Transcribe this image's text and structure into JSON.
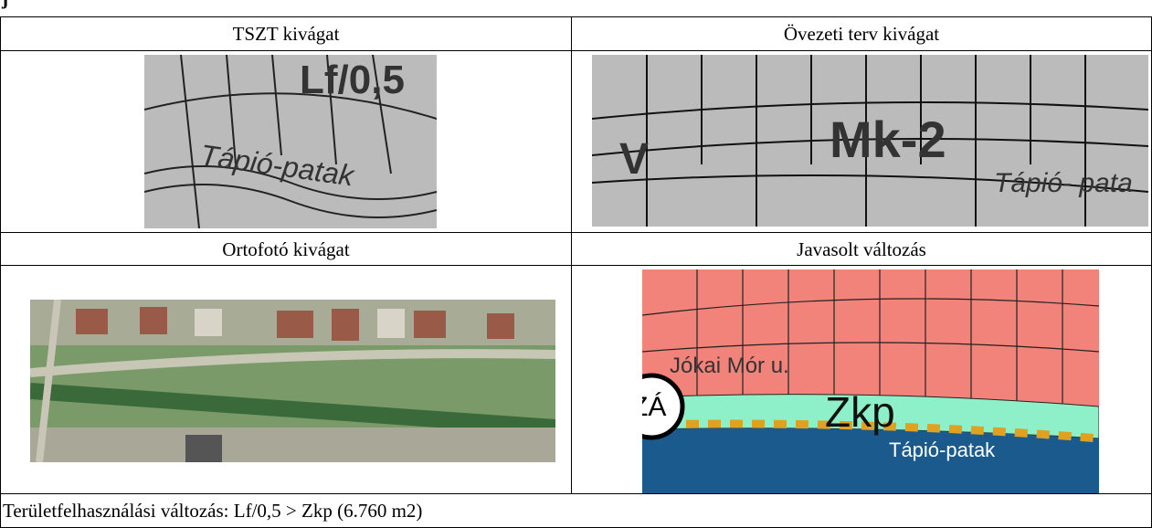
{
  "top_fragment": "j",
  "table": {
    "rows": [
      [
        "TSZT kivágat",
        "Övezeti terv kivágat"
      ],
      [
        "Ortofotó kivágat",
        "Javasolt változás"
      ]
    ],
    "footer": "Területfelhasználási változás: Lf/0,5 > Zkp (6.760 m2)"
  },
  "images": {
    "tszt": [
      "Lf/0,5",
      "Tápió-patak"
    ],
    "ovezeti": [
      "Mk-2",
      "V",
      "Tápió- pata"
    ],
    "javasolt": [
      "Jókai Mór u.",
      "Zkp",
      "Tápió-patak",
      "ZÁ"
    ]
  }
}
